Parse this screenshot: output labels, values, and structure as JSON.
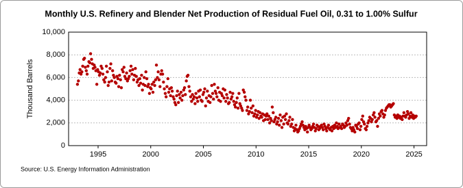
{
  "chart_data": {
    "type": "scatter",
    "title": "Monthly U.S. Refinery and Blender Net Production of Residual Fuel Oil, 0.31 to 1.00% Sulfur",
    "y_label": "Thousand Barrels",
    "source": "Source: U.S. Energy Information Administration",
    "color": "#b50000",
    "grid": true,
    "xlim": [
      1992.2,
      2026.2
    ],
    "xticks": [
      1995,
      2000,
      2005,
      2010,
      2015,
      2020,
      2025
    ],
    "ylim": [
      0,
      10000
    ],
    "yticks": [
      0,
      {
        "value": 2000,
        "label": "2,000"
      },
      {
        "value": 4000,
        "label": "4,000"
      },
      {
        "value": 6000,
        "label": "6,000"
      },
      {
        "value": 8000,
        "label": "8,000"
      },
      {
        "value": 10000,
        "label": "10,000"
      }
    ],
    "x": [
      1993.04,
      1993.13,
      1993.21,
      1993.29,
      1993.38,
      1993.46,
      1993.54,
      1993.63,
      1993.71,
      1993.79,
      1993.88,
      1993.96,
      1994.04,
      1994.13,
      1994.21,
      1994.29,
      1994.38,
      1994.46,
      1994.54,
      1994.63,
      1994.71,
      1994.79,
      1994.88,
      1994.96,
      1995.04,
      1995.13,
      1995.21,
      1995.29,
      1995.38,
      1995.46,
      1995.54,
      1995.63,
      1995.71,
      1995.79,
      1995.88,
      1995.96,
      1996.04,
      1996.13,
      1996.21,
      1996.29,
      1996.38,
      1996.46,
      1996.54,
      1996.63,
      1996.71,
      1996.79,
      1996.88,
      1996.96,
      1997.04,
      1997.13,
      1997.21,
      1997.29,
      1997.38,
      1997.46,
      1997.54,
      1997.63,
      1997.71,
      1997.79,
      1997.88,
      1997.96,
      1998.04,
      1998.13,
      1998.21,
      1998.29,
      1998.38,
      1998.46,
      1998.54,
      1998.63,
      1998.71,
      1998.79,
      1998.88,
      1998.96,
      1999.04,
      1999.13,
      1999.21,
      1999.29,
      1999.38,
      1999.46,
      1999.54,
      1999.63,
      1999.71,
      1999.79,
      1999.88,
      1999.96,
      2000.04,
      2000.13,
      2000.21,
      2000.29,
      2000.38,
      2000.46,
      2000.54,
      2000.63,
      2000.71,
      2000.79,
      2000.88,
      2000.96,
      2001.04,
      2001.13,
      2001.21,
      2001.29,
      2001.38,
      2001.46,
      2001.54,
      2001.63,
      2001.71,
      2001.79,
      2001.88,
      2001.96,
      2002.04,
      2002.13,
      2002.21,
      2002.29,
      2002.38,
      2002.46,
      2002.54,
      2002.63,
      2002.71,
      2002.79,
      2002.88,
      2002.96,
      2003.04,
      2003.13,
      2003.21,
      2003.29,
      2003.38,
      2003.46,
      2003.54,
      2003.63,
      2003.71,
      2003.79,
      2003.88,
      2003.96,
      2004.04,
      2004.13,
      2004.21,
      2004.29,
      2004.38,
      2004.46,
      2004.54,
      2004.63,
      2004.71,
      2004.79,
      2004.88,
      2004.96,
      2005.04,
      2005.13,
      2005.21,
      2005.29,
      2005.38,
      2005.46,
      2005.54,
      2005.63,
      2005.71,
      2005.79,
      2005.88,
      2005.96,
      2006.04,
      2006.13,
      2006.21,
      2006.29,
      2006.38,
      2006.46,
      2006.54,
      2006.63,
      2006.71,
      2006.79,
      2006.88,
      2006.96,
      2007.04,
      2007.13,
      2007.21,
      2007.29,
      2007.38,
      2007.46,
      2007.54,
      2007.63,
      2007.71,
      2007.79,
      2007.88,
      2007.96,
      2008.04,
      2008.13,
      2008.21,
      2008.29,
      2008.38,
      2008.46,
      2008.54,
      2008.63,
      2008.71,
      2008.79,
      2008.88,
      2008.96,
      2009.04,
      2009.13,
      2009.21,
      2009.29,
      2009.38,
      2009.46,
      2009.54,
      2009.63,
      2009.71,
      2009.79,
      2009.88,
      2009.96,
      2010.04,
      2010.13,
      2010.21,
      2010.29,
      2010.38,
      2010.46,
      2010.54,
      2010.63,
      2010.71,
      2010.79,
      2010.88,
      2010.96,
      2011.04,
      2011.13,
      2011.21,
      2011.29,
      2011.38,
      2011.46,
      2011.54,
      2011.63,
      2011.71,
      2011.79,
      2011.88,
      2011.96,
      2012.04,
      2012.13,
      2012.21,
      2012.29,
      2012.38,
      2012.46,
      2012.54,
      2012.63,
      2012.71,
      2012.79,
      2012.88,
      2012.96,
      2013.04,
      2013.13,
      2013.21,
      2013.29,
      2013.38,
      2013.46,
      2013.54,
      2013.63,
      2013.71,
      2013.79,
      2013.88,
      2013.96,
      2014.04,
      2014.13,
      2014.21,
      2014.29,
      2014.38,
      2014.46,
      2014.54,
      2014.63,
      2014.71,
      2014.79,
      2014.88,
      2014.96,
      2015.04,
      2015.13,
      2015.21,
      2015.29,
      2015.38,
      2015.46,
      2015.54,
      2015.63,
      2015.71,
      2015.79,
      2015.88,
      2015.96,
      2016.04,
      2016.13,
      2016.21,
      2016.29,
      2016.38,
      2016.46,
      2016.54,
      2016.63,
      2016.71,
      2016.79,
      2016.88,
      2016.96,
      2017.04,
      2017.13,
      2017.21,
      2017.29,
      2017.38,
      2017.46,
      2017.54,
      2017.63,
      2017.71,
      2017.79,
      2017.88,
      2017.96,
      2018.04,
      2018.13,
      2018.21,
      2018.29,
      2018.38,
      2018.46,
      2018.54,
      2018.63,
      2018.71,
      2018.79,
      2018.88,
      2018.96,
      2019.04,
      2019.13,
      2019.21,
      2019.29,
      2019.38,
      2019.46,
      2019.54,
      2019.63,
      2019.71,
      2019.79,
      2019.88,
      2019.96,
      2020.04,
      2020.13,
      2020.21,
      2020.29,
      2020.38,
      2020.46,
      2020.54,
      2020.63,
      2020.71,
      2020.79,
      2020.88,
      2020.96,
      2021.04,
      2021.13,
      2021.21,
      2021.29,
      2021.38,
      2021.46,
      2021.54,
      2021.63,
      2021.71,
      2021.79,
      2021.88,
      2021.96,
      2022.04,
      2022.13,
      2022.21,
      2022.29,
      2022.38,
      2022.46,
      2022.54,
      2022.63,
      2022.71,
      2022.79,
      2022.88,
      2022.96,
      2023.04,
      2023.13,
      2023.21,
      2023.29,
      2023.38,
      2023.46,
      2023.54,
      2023.63,
      2023.71,
      2023.79,
      2023.88,
      2023.96,
      2024.04,
      2024.13,
      2024.21,
      2024.29,
      2024.38,
      2024.46,
      2024.54,
      2024.63,
      2024.71,
      2024.79,
      2024.88,
      2024.96,
      2025.04,
      2025.13,
      2025.21
    ],
    "values": [
      5400,
      5700,
      6400,
      6700,
      6300,
      6500,
      7000,
      7600,
      7700,
      6900,
      6600,
      6300,
      7000,
      7400,
      7300,
      8100,
      7600,
      7200,
      6800,
      7100,
      6900,
      6600,
      5400,
      6700,
      6500,
      6200,
      6400,
      7000,
      6800,
      6300,
      5800,
      5600,
      6000,
      7000,
      6500,
      5300,
      5600,
      6800,
      7200,
      5700,
      6600,
      6200,
      6000,
      5600,
      5500,
      6100,
      5900,
      5200,
      6200,
      5800,
      5100,
      6700,
      6500,
      6900,
      6100,
      5900,
      6400,
      5700,
      5900,
      6100,
      6600,
      7000,
      6300,
      6700,
      5800,
      6200,
      6800,
      6100,
      5600,
      5800,
      5300,
      5900,
      5500,
      6200,
      4900,
      5400,
      6000,
      5300,
      6500,
      5900,
      5200,
      5400,
      4600,
      5100,
      5000,
      5400,
      4700,
      5600,
      5300,
      5800,
      7100,
      6000,
      6500,
      5800,
      5200,
      6300,
      6600,
      6300,
      5600,
      5000,
      4600,
      4300,
      5200,
      5900,
      4700,
      5000,
      4400,
      5100,
      4800,
      4300,
      4100,
      3800,
      3600,
      4400,
      4800,
      3800,
      4500,
      4200,
      4700,
      4000,
      4400,
      4900,
      5100,
      4500,
      5700,
      6100,
      6200,
      5200,
      4800,
      4300,
      3900,
      4500,
      4100,
      4300,
      3700,
      4600,
      4200,
      3900,
      4800,
      4300,
      4900,
      4000,
      3900,
      4500,
      4700,
      5000,
      3500,
      4200,
      4800,
      3900,
      4400,
      3800,
      4300,
      5300,
      4600,
      4100,
      5400,
      4800,
      4600,
      4300,
      5100,
      4000,
      4700,
      3900,
      4600,
      4400,
      5000,
      4200,
      4900,
      3900,
      4500,
      4200,
      3700,
      3800,
      4700,
      4100,
      4300,
      4600,
      3900,
      3600,
      3400,
      3800,
      4200,
      3300,
      4600,
      3700,
      3500,
      3300,
      3100,
      4900,
      4700,
      4300,
      4000,
      3100,
      3400,
      2800,
      3000,
      4000,
      3300,
      2900,
      3500,
      2600,
      2800,
      3100,
      2500,
      2700,
      3000,
      2400,
      2900,
      2600,
      2500,
      2800,
      2200,
      2700,
      2300,
      2600,
      2800,
      2300,
      2600,
      2000,
      2400,
      2200,
      3400,
      2900,
      2100,
      2300,
      2500,
      1900,
      2100,
      2400,
      1800,
      2700,
      2200,
      1600,
      2500,
      1900,
      2600,
      2300,
      2800,
      2000,
      1900,
      2200,
      2500,
      1700,
      1900,
      2300,
      1600,
      1300,
      1500,
      1800,
      1400,
      1200,
      1300,
      1500,
      1700,
      1900,
      2100,
      1800,
      1600,
      1400,
      1700,
      1500,
      1200,
      1600,
      1800,
      1600,
      1400,
      1500,
      1700,
      1900,
      1600,
      1300,
      1500,
      1800,
      1700,
      1400,
      1500,
      1700,
      1800,
      1600,
      1400,
      1900,
      1700,
      1500,
      1300,
      1600,
      1800,
      1500,
      1400,
      1600,
      1300,
      1700,
      1500,
      1800,
      1600,
      2000,
      1700,
      1500,
      1900,
      1600,
      1700,
      1500,
      1900,
      1800,
      1600,
      1700,
      2000,
      1800,
      2200,
      2400,
      1900,
      1600,
      1500,
      1300,
      1600,
      1400,
      1200,
      1800,
      1700,
      1500,
      1900,
      2000,
      1400,
      1700,
      2300,
      2600,
      2100,
      1900,
      1500,
      1400,
      1700,
      2000,
      2200,
      2500,
      2400,
      2100,
      2300,
      2700,
      2900,
      2500,
      2100,
      2200,
      1700,
      2400,
      2800,
      2600,
      3000,
      3100,
      2800,
      2500,
      2700,
      3100,
      3300,
      3400,
      3500,
      3600,
      3600,
      3400,
      3500,
      3600,
      3700,
      2700,
      2500,
      2600,
      2400,
      2700,
      2500,
      2600,
      2400,
      2500,
      2300,
      2600,
      2900,
      2600,
      2500,
      2700,
      3000,
      2800,
      2400,
      2600,
      2900,
      2500,
      2700,
      2400,
      2600,
      2500,
      2600
    ]
  }
}
